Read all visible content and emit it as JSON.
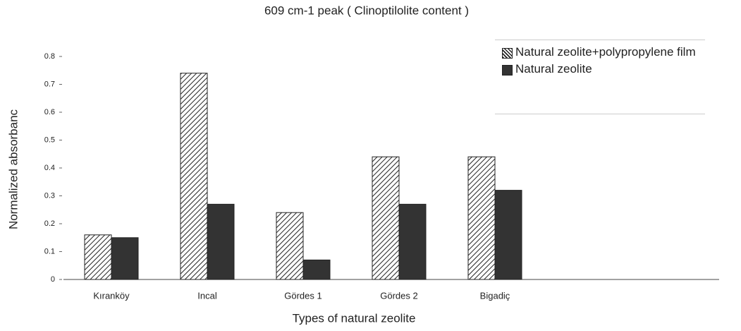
{
  "chart_data": {
    "type": "bar",
    "title": "609 cm-1 peak ( Clinoptilolite content )",
    "x_label": "Types of natural zeolite",
    "y_label": "Normalized absorbanc",
    "categories": [
      "Kıranköy",
      "Incal",
      "Gördes 1",
      "Gördes 2",
      "Bigadiç"
    ],
    "series": [
      {
        "name": "Natural zeolite+polypropylene film",
        "color": "#ffffff",
        "pattern": "hatch",
        "values": [
          0.16,
          0.74,
          0.24,
          0.44,
          0.44
        ]
      },
      {
        "name": "Natural zeolite",
        "color": "#333333",
        "pattern": "solid",
        "values": [
          0.15,
          0.27,
          0.07,
          0.27,
          0.32
        ]
      }
    ],
    "ylim": [
      0,
      0.8
    ],
    "yticks": [
      0,
      0.1,
      0.2,
      0.3,
      0.4,
      0.5,
      0.6,
      0.7,
      0.8
    ],
    "grid": false,
    "legend": "upper right"
  }
}
